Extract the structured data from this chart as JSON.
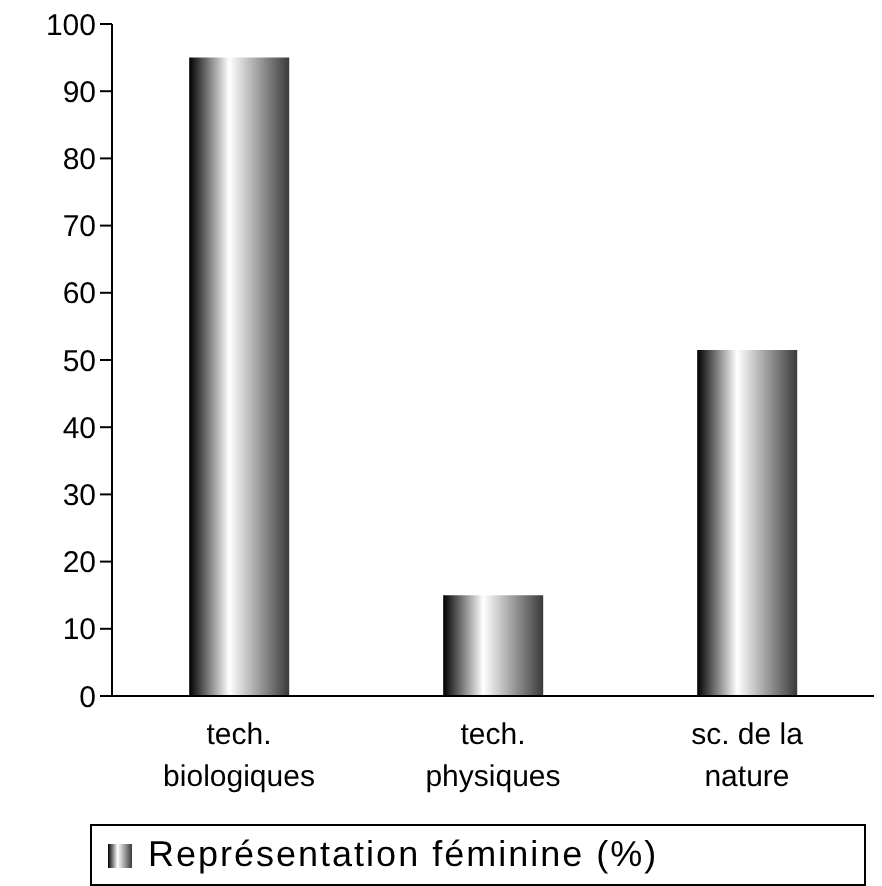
{
  "chart_data": {
    "type": "bar",
    "categories": [
      "tech. biologiques",
      "tech. physiques",
      "sc. de la nature"
    ],
    "series": [
      {
        "name": "Représentation féminine (%)",
        "color": "#3a3a3a",
        "values": [
          95,
          15,
          51.5
        ]
      }
    ],
    "ylim": [
      0,
      100
    ],
    "yticks": [
      0,
      10,
      20,
      30,
      40,
      50,
      60,
      70,
      80,
      90,
      100
    ],
    "grid": false,
    "legend": "bottom"
  }
}
